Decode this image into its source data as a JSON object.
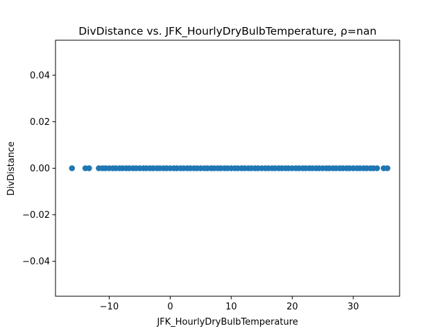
{
  "chart_data": {
    "type": "scatter",
    "title": "DivDistance vs. JFK_HourlyDryBulbTemperature, ρ=nan",
    "xlabel": "JFK_HourlyDryBulbTemperature",
    "ylabel": "DivDistance",
    "xlim": [
      -18.8,
      37.6
    ],
    "ylim": [
      -0.055,
      0.055
    ],
    "x_ticks": [
      -10,
      0,
      10,
      20,
      30
    ],
    "x_tick_labels": [
      "−10",
      "0",
      "10",
      "20",
      "30"
    ],
    "y_ticks": [
      -0.04,
      -0.02,
      0.0,
      0.02,
      0.04
    ],
    "y_tick_labels": [
      "−0.04",
      "−0.02",
      "0.00",
      "0.02",
      "0.04"
    ],
    "grid": false,
    "color": "#1f77b4",
    "series": [
      {
        "x": [
          -16.1,
          -13.9,
          -13.3,
          -11.7,
          -11.1,
          -10.6,
          -10.0,
          -9.4,
          -8.9,
          -8.3,
          -7.8,
          -7.2,
          -6.7,
          -6.1,
          -5.6,
          -5.0,
          -4.4,
          -3.9,
          -3.3,
          -2.8,
          -2.2,
          -1.7,
          -1.1,
          -0.6,
          0.0,
          0.6,
          1.1,
          1.7,
          2.2,
          2.8,
          3.3,
          3.9,
          4.4,
          5.0,
          5.6,
          6.1,
          6.7,
          7.2,
          7.8,
          8.3,
          8.9,
          9.4,
          10.0,
          10.6,
          11.1,
          11.7,
          12.2,
          12.8,
          13.3,
          13.9,
          14.4,
          15.0,
          15.6,
          16.1,
          16.7,
          17.2,
          17.8,
          18.3,
          18.9,
          19.4,
          20.0,
          20.6,
          21.1,
          21.7,
          22.2,
          22.8,
          23.3,
          23.9,
          24.4,
          25.0,
          25.6,
          26.1,
          26.7,
          27.2,
          27.8,
          28.3,
          28.9,
          29.4,
          30.0,
          30.6,
          31.1,
          31.7,
          32.2,
          32.8,
          33.3,
          33.9,
          35.0,
          35.6
        ],
        "y_constant": 0.0
      }
    ]
  }
}
